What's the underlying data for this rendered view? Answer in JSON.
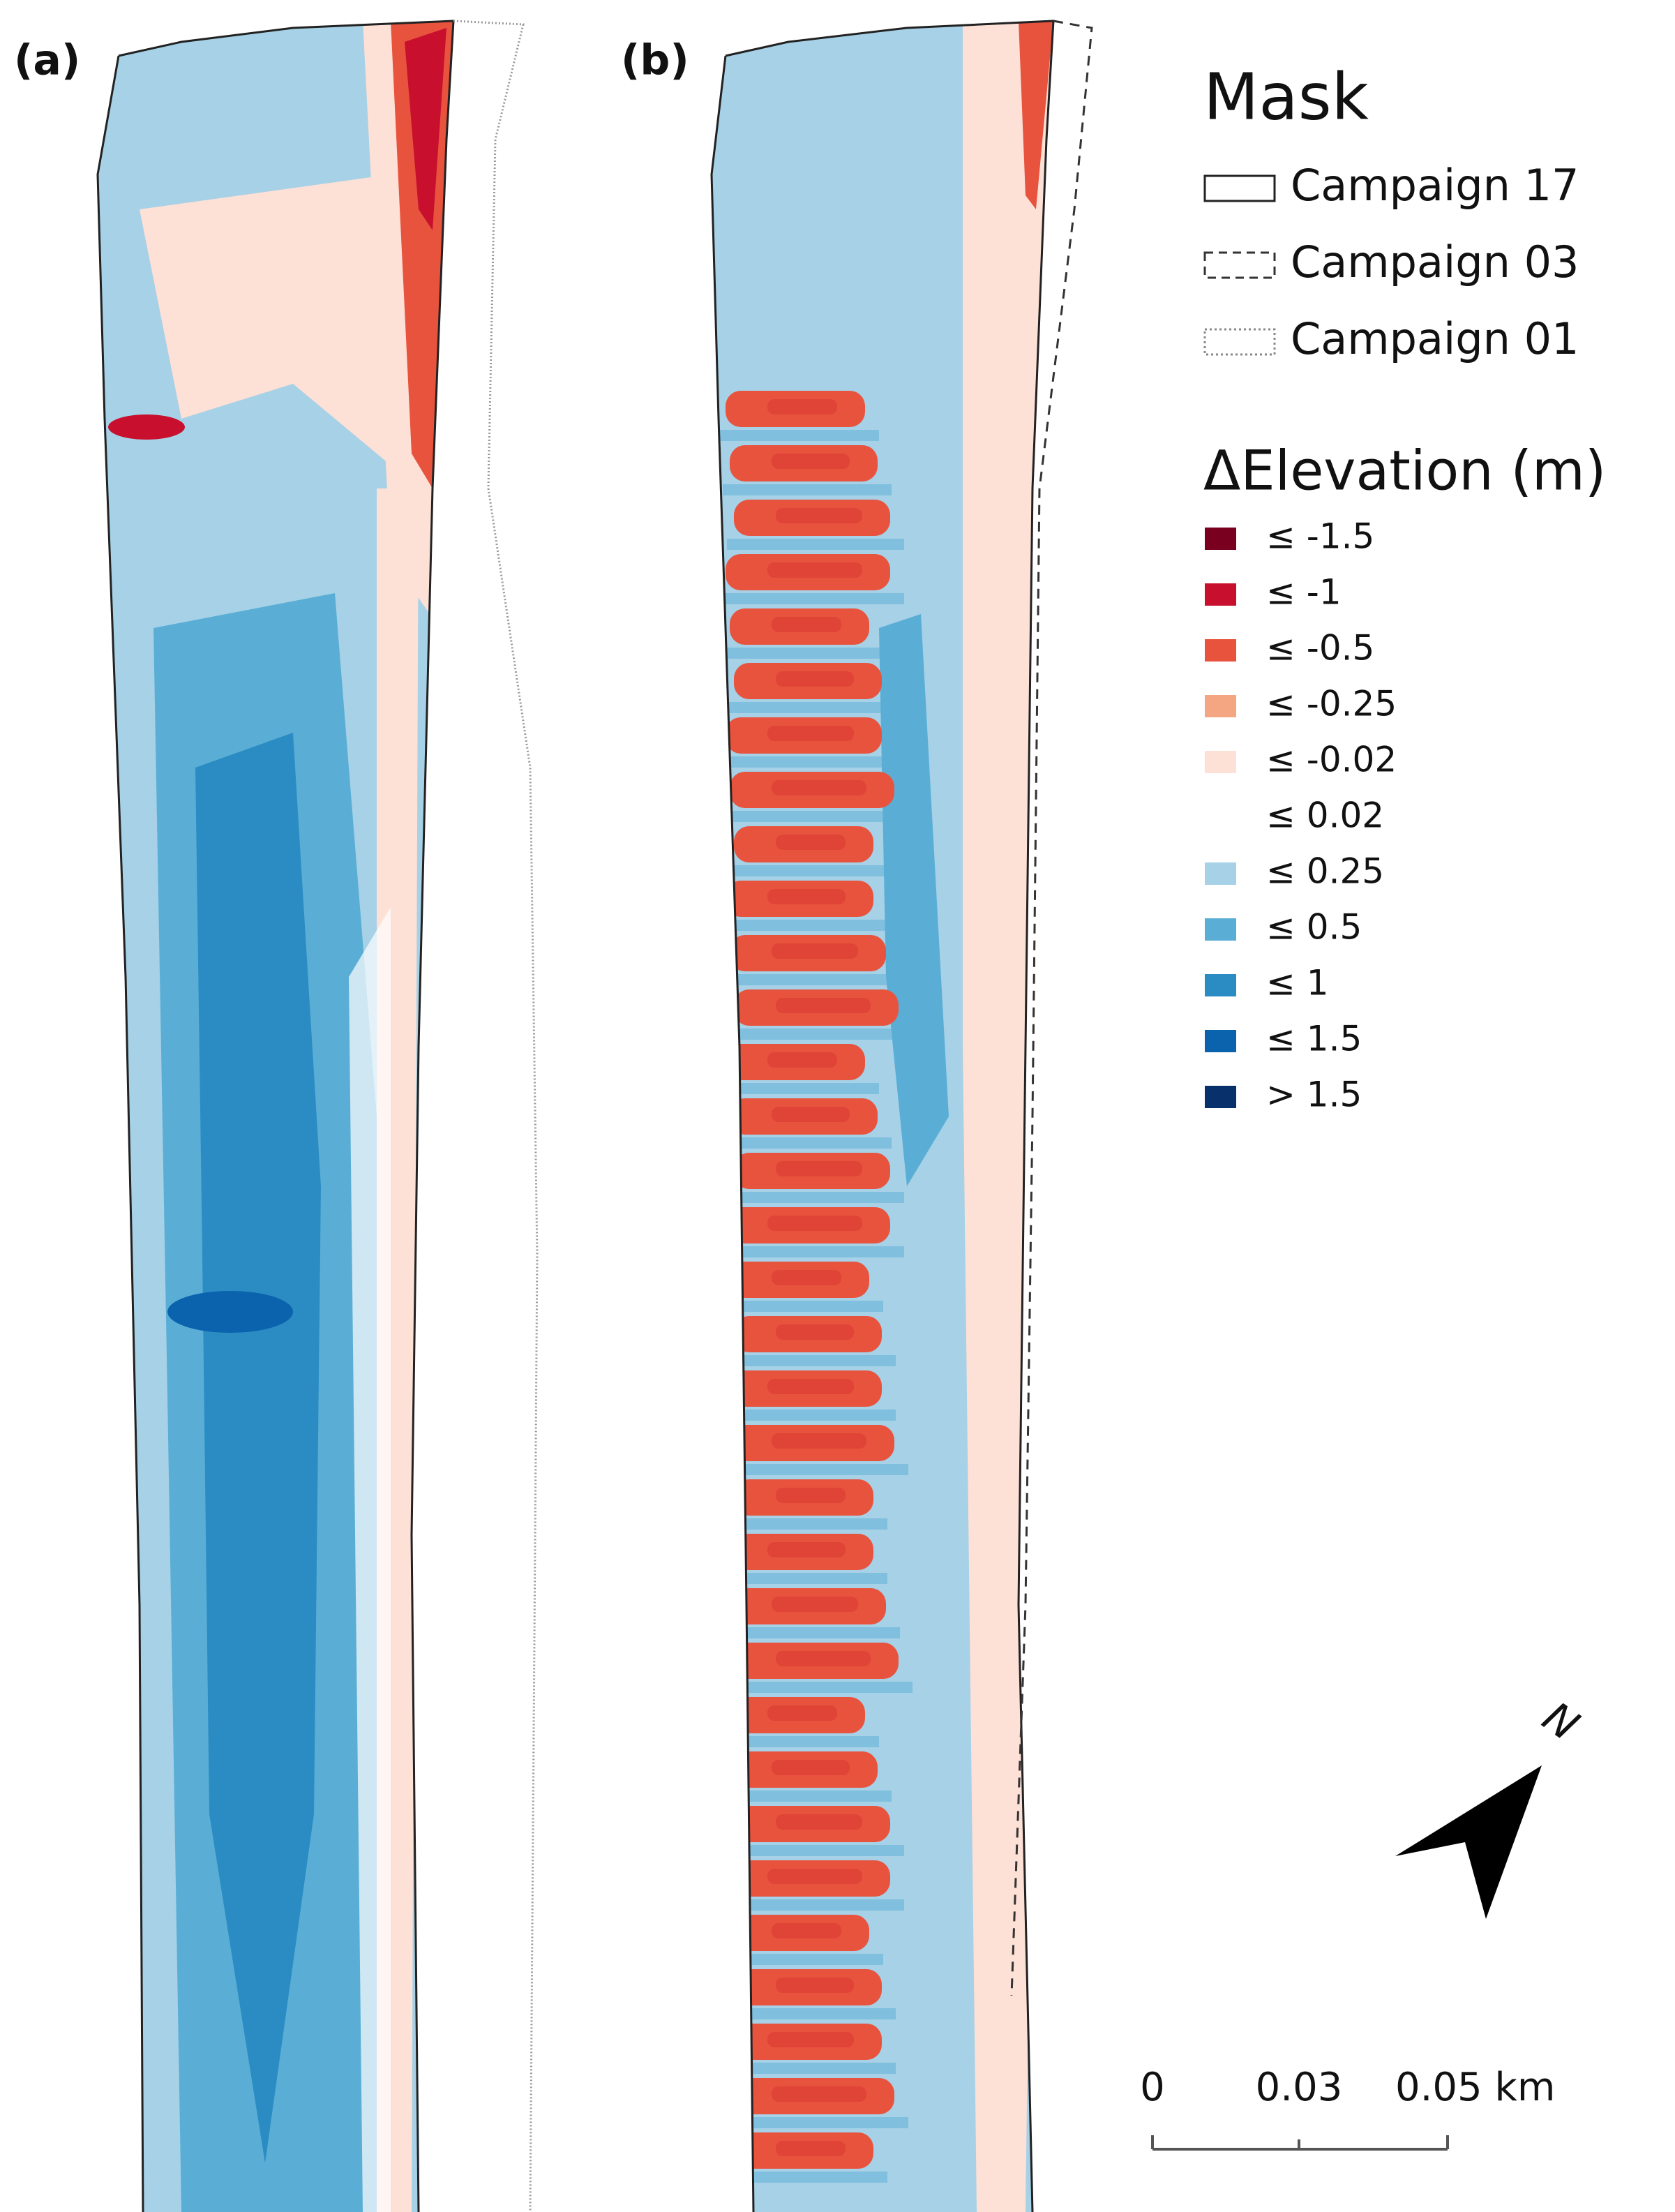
{
  "panels": [
    {
      "label": "(a)"
    },
    {
      "label": "(b)"
    }
  ],
  "legend": {
    "mask_title": "Mask",
    "mask_items": [
      {
        "label": "Campaign 17",
        "style": "solid"
      },
      {
        "label": "Campaign 03",
        "style": "dashed"
      },
      {
        "label": "Campaign 01",
        "style": "dotted"
      }
    ],
    "elevation_title": "ΔElevation (m)",
    "classes": [
      {
        "label": "≤ -1.5",
        "color": "#7a0020"
      },
      {
        "label": "≤ -1",
        "color": "#c8102e"
      },
      {
        "label": "≤ -0.5",
        "color": "#e8533e"
      },
      {
        "label": "≤ -0.25",
        "color": "#f4a582"
      },
      {
        "label": "≤ -0.02",
        "color": "#fde0d6"
      },
      {
        "label": "≤ 0.02",
        "color": "#ffffff"
      },
      {
        "label": "≤ 0.25",
        "color": "#a6d1e6"
      },
      {
        "label": "≤ 0.5",
        "color": "#5aaed6"
      },
      {
        "label": "≤ 1",
        "color": "#2b8cc4"
      },
      {
        "label": "≤ 1.5",
        "color": "#0b62ad"
      },
      {
        "label": "> 1.5",
        "color": "#08306b"
      }
    ]
  },
  "scale_bar": {
    "labels": [
      "0",
      "0.03",
      "0.05 km"
    ]
  },
  "north_label": "N"
}
